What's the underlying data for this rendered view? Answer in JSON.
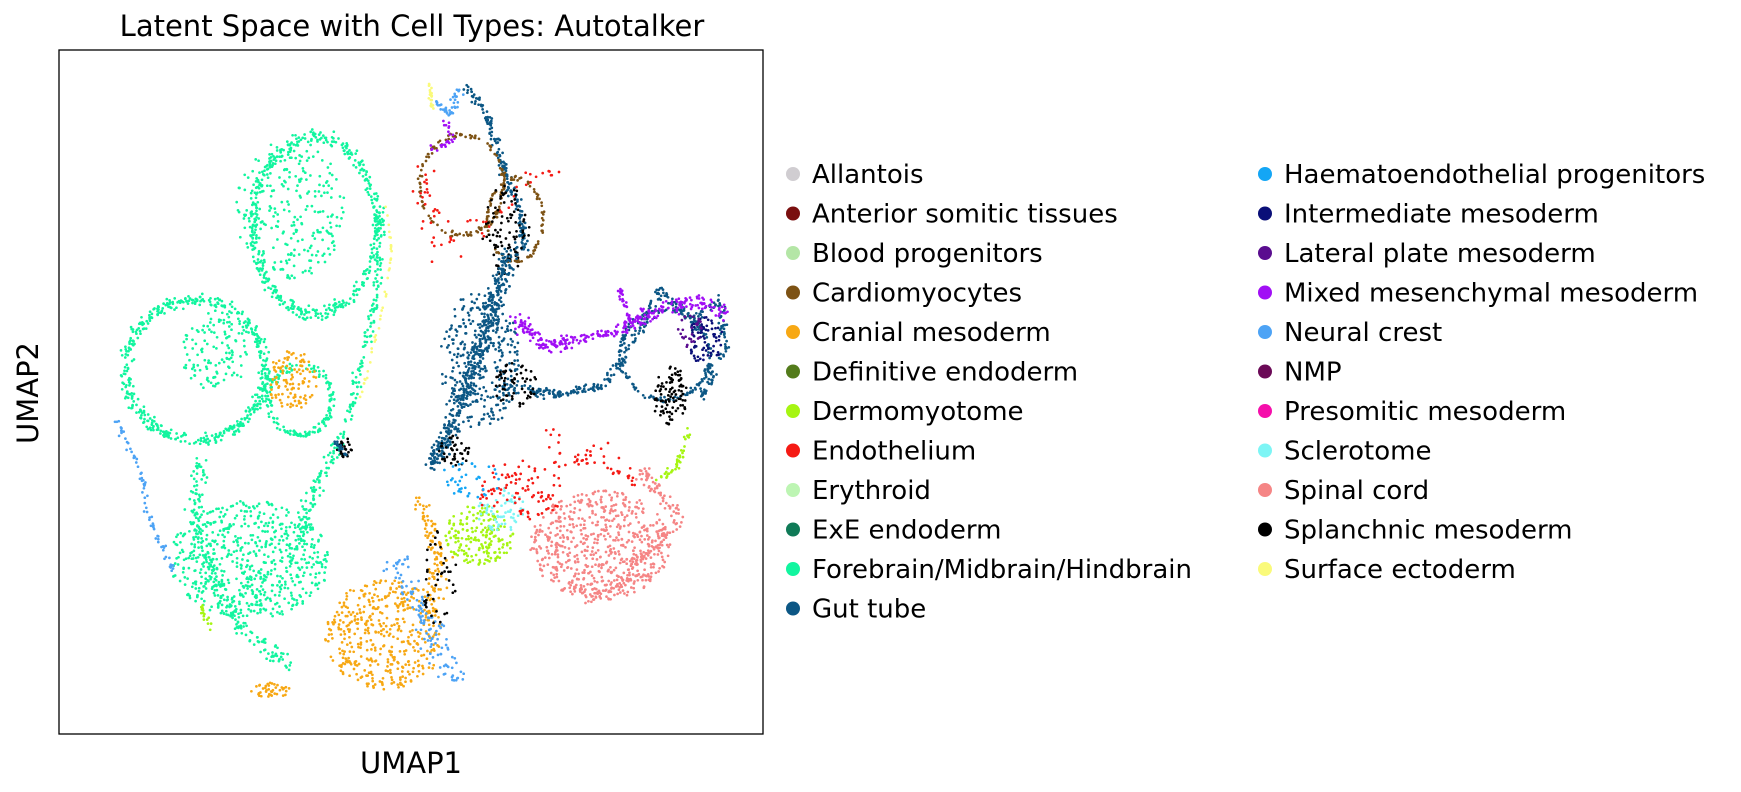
{
  "chart_data": {
    "type": "scatter",
    "title": "Latent Space with Cell Types: Autotalker",
    "xlabel": "UMAP1",
    "ylabel": "UMAP2",
    "xticks": "none",
    "yticks": "none",
    "grid": false,
    "legend_position": "right, outside plot, two columns",
    "legend": [
      {
        "name": "Allantois",
        "color": "#d0cdd1"
      },
      {
        "name": "Anterior somitic tissues",
        "color": "#7a0f0f"
      },
      {
        "name": "Blood progenitors",
        "color": "#b4e6a6"
      },
      {
        "name": "Cardiomyocytes",
        "color": "#7d5214"
      },
      {
        "name": "Cranial mesoderm",
        "color": "#f7a814"
      },
      {
        "name": "Definitive endoderm",
        "color": "#537b1b"
      },
      {
        "name": "Dermomyotome",
        "color": "#a6f512"
      },
      {
        "name": "Endothelium",
        "color": "#f51a14"
      },
      {
        "name": "Erythroid",
        "color": "#bdf5b3"
      },
      {
        "name": "ExE endoderm",
        "color": "#0f7a57"
      },
      {
        "name": "Forebrain/Midbrain/Hindbrain",
        "color": "#12f59f"
      },
      {
        "name": "Gut tube",
        "color": "#0c5785"
      },
      {
        "name": "Haematoendothelial progenitors",
        "color": "#14a6f5"
      },
      {
        "name": "Intermediate mesoderm",
        "color": "#0a0f78"
      },
      {
        "name": "Lateral plate mesoderm",
        "color": "#5a0d8f"
      },
      {
        "name": "Mixed mesenchymal mesoderm",
        "color": "#a10ff5"
      },
      {
        "name": "Neural crest",
        "color": "#4da3f5"
      },
      {
        "name": "NMP",
        "color": "#6b0a57"
      },
      {
        "name": "Presomitic mesoderm",
        "color": "#f50fab"
      },
      {
        "name": "Sclerotome",
        "color": "#7df5f5"
      },
      {
        "name": "Spinal cord",
        "color": "#f58585"
      },
      {
        "name": "Splanchnic mesoderm",
        "color": "#000000"
      },
      {
        "name": "Surface ectoderm",
        "color": "#fafa7a"
      }
    ]
  }
}
